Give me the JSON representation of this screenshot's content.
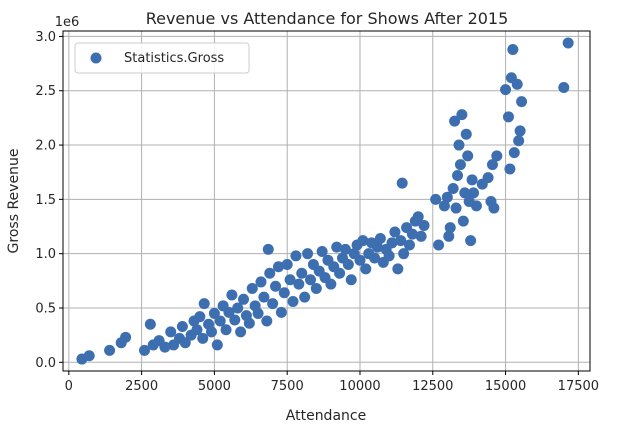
{
  "chart_data": {
    "type": "scatter",
    "title": "Revenue vs Attendance for Shows After 2015",
    "xlabel": "Attendance",
    "ylabel": "Gross Revenue",
    "y_offset_label": "1e6",
    "xlim": [
      -200,
      17900
    ],
    "ylim": [
      -80000,
      3050000
    ],
    "x_ticks": [
      0,
      2500,
      5000,
      7500,
      10000,
      12500,
      15000,
      17500
    ],
    "x_tick_labels": [
      "0",
      "2500",
      "5000",
      "7500",
      "10000",
      "12500",
      "15000",
      "17500"
    ],
    "y_ticks": [
      0,
      500000,
      1000000,
      1500000,
      2000000,
      2500000,
      3000000
    ],
    "y_tick_labels": [
      "0.0",
      "0.5",
      "1.0",
      "1.5",
      "2.0",
      "2.5",
      "3.0"
    ],
    "grid": true,
    "legend_position": "top-left",
    "series": [
      {
        "name": "Statistics.Gross",
        "color": "#3d6fb0",
        "points": [
          [
            450,
            30000
          ],
          [
            700,
            60000
          ],
          [
            1400,
            110000
          ],
          [
            1800,
            180000
          ],
          [
            1950,
            230000
          ],
          [
            2600,
            110000
          ],
          [
            2800,
            350000
          ],
          [
            2900,
            160000
          ],
          [
            3100,
            200000
          ],
          [
            3300,
            140000
          ],
          [
            3500,
            280000
          ],
          [
            3600,
            160000
          ],
          [
            3800,
            220000
          ],
          [
            3900,
            330000
          ],
          [
            4000,
            180000
          ],
          [
            4200,
            250000
          ],
          [
            4300,
            380000
          ],
          [
            4400,
            300000
          ],
          [
            4500,
            420000
          ],
          [
            4600,
            220000
          ],
          [
            4650,
            540000
          ],
          [
            4800,
            350000
          ],
          [
            4900,
            280000
          ],
          [
            5000,
            450000
          ],
          [
            5100,
            160000
          ],
          [
            5200,
            380000
          ],
          [
            5300,
            520000
          ],
          [
            5400,
            300000
          ],
          [
            5500,
            460000
          ],
          [
            5600,
            620000
          ],
          [
            5700,
            390000
          ],
          [
            5800,
            500000
          ],
          [
            5900,
            280000
          ],
          [
            6000,
            580000
          ],
          [
            6100,
            430000
          ],
          [
            6200,
            360000
          ],
          [
            6300,
            680000
          ],
          [
            6400,
            520000
          ],
          [
            6500,
            450000
          ],
          [
            6600,
            740000
          ],
          [
            6700,
            600000
          ],
          [
            6800,
            380000
          ],
          [
            6850,
            1040000
          ],
          [
            6900,
            820000
          ],
          [
            7000,
            540000
          ],
          [
            7100,
            700000
          ],
          [
            7200,
            880000
          ],
          [
            7300,
            460000
          ],
          [
            7400,
            640000
          ],
          [
            7500,
            900000
          ],
          [
            7600,
            760000
          ],
          [
            7700,
            560000
          ],
          [
            7800,
            980000
          ],
          [
            7900,
            720000
          ],
          [
            8000,
            820000
          ],
          [
            8100,
            600000
          ],
          [
            8200,
            1000000
          ],
          [
            8300,
            760000
          ],
          [
            8400,
            900000
          ],
          [
            8500,
            680000
          ],
          [
            8600,
            840000
          ],
          [
            8700,
            1020000
          ],
          [
            8800,
            780000
          ],
          [
            8900,
            940000
          ],
          [
            9000,
            720000
          ],
          [
            9100,
            880000
          ],
          [
            9200,
            1060000
          ],
          [
            9300,
            820000
          ],
          [
            9400,
            960000
          ],
          [
            9500,
            1040000
          ],
          [
            9600,
            900000
          ],
          [
            9700,
            760000
          ],
          [
            9800,
            1000000
          ],
          [
            9900,
            1080000
          ],
          [
            10000,
            940000
          ],
          [
            10100,
            1120000
          ],
          [
            10200,
            860000
          ],
          [
            10300,
            1000000
          ],
          [
            10400,
            1100000
          ],
          [
            10500,
            960000
          ],
          [
            10600,
            1060000
          ],
          [
            10700,
            1140000
          ],
          [
            10800,
            920000
          ],
          [
            10900,
            1040000
          ],
          [
            11000,
            980000
          ],
          [
            11100,
            1100000
          ],
          [
            11200,
            1200000
          ],
          [
            11300,
            860000
          ],
          [
            11400,
            1120000
          ],
          [
            11450,
            1650000
          ],
          [
            11500,
            1000000
          ],
          [
            11600,
            1240000
          ],
          [
            11700,
            1080000
          ],
          [
            11800,
            1180000
          ],
          [
            11900,
            1300000
          ],
          [
            12000,
            1340000
          ],
          [
            12100,
            1160000
          ],
          [
            12200,
            1260000
          ],
          [
            12600,
            1500000
          ],
          [
            12700,
            1080000
          ],
          [
            12900,
            1440000
          ],
          [
            13000,
            1520000
          ],
          [
            13050,
            1160000
          ],
          [
            13100,
            1240000
          ],
          [
            13200,
            1600000
          ],
          [
            13250,
            2220000
          ],
          [
            13300,
            1420000
          ],
          [
            13350,
            1720000
          ],
          [
            13400,
            2000000
          ],
          [
            13450,
            1820000
          ],
          [
            13500,
            2280000
          ],
          [
            13550,
            1300000
          ],
          [
            13600,
            1560000
          ],
          [
            13650,
            2100000
          ],
          [
            13700,
            1900000
          ],
          [
            13750,
            1480000
          ],
          [
            13800,
            1120000
          ],
          [
            13850,
            1680000
          ],
          [
            13900,
            1560000
          ],
          [
            14000,
            1440000
          ],
          [
            14200,
            1640000
          ],
          [
            14400,
            1700000
          ],
          [
            14500,
            1480000
          ],
          [
            14550,
            1820000
          ],
          [
            14600,
            1420000
          ],
          [
            14700,
            1900000
          ],
          [
            15000,
            2510000
          ],
          [
            15100,
            2260000
          ],
          [
            15150,
            1780000
          ],
          [
            15200,
            2620000
          ],
          [
            15250,
            2880000
          ],
          [
            15300,
            1930000
          ],
          [
            15400,
            2560000
          ],
          [
            15450,
            2040000
          ],
          [
            15500,
            2130000
          ],
          [
            15550,
            2400000
          ],
          [
            17000,
            2530000
          ],
          [
            17150,
            2940000
          ]
        ]
      }
    ]
  }
}
